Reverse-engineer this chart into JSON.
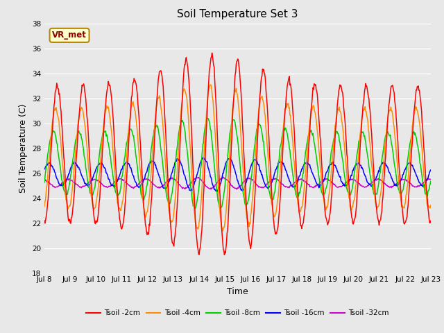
{
  "title": "Soil Temperature Set 3",
  "xlabel": "Time",
  "ylabel": "Soil Temperature (C)",
  "ylim": [
    18,
    38
  ],
  "yticks": [
    18,
    20,
    22,
    24,
    26,
    28,
    30,
    32,
    34,
    36,
    38
  ],
  "xtick_labels": [
    "Jul 8",
    "Jul 9",
    "Jul 10",
    "Jul 11",
    "Jul 12",
    "Jul 13",
    "Jul 14",
    "Jul 15",
    "Jul 16",
    "Jul 17",
    "Jul 18",
    "Jul 19",
    "Jul 20",
    "Jul 21",
    "Jul 22",
    "Jul 23"
  ],
  "series_colors": [
    "#FF0000",
    "#FF8C00",
    "#00CC00",
    "#0000FF",
    "#CC00CC"
  ],
  "series_labels": [
    "Tsoil -2cm",
    "Tsoil -4cm",
    "Tsoil -8cm",
    "Tsoil -16cm",
    "Tsoil -32cm"
  ],
  "annotation_text": "VR_met",
  "bg_color": "#E8E8E8",
  "fig_color": "#E8E8E8",
  "n_days": 15,
  "mean2": 27.5,
  "amp2": 5.5,
  "phase2": 0.0,
  "mean4": 27.2,
  "amp4": 4.0,
  "phase4": 0.4,
  "mean8": 26.8,
  "amp8": 2.5,
  "phase8": 1.0,
  "mean16": 25.9,
  "amp16": 0.9,
  "phase16": 2.0,
  "mean32": 25.2,
  "amp32": 0.3,
  "phase32": 3.5
}
